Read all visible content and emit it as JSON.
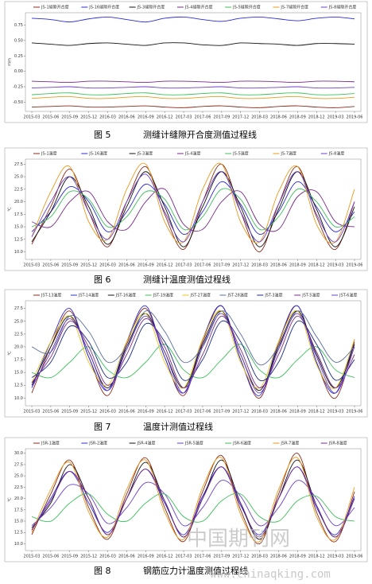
{
  "chart_data": [
    {
      "type": "line",
      "figure": "图 5",
      "title": "测缝计缝隙开合度测值过程线",
      "y_label": "mm",
      "categories": [
        "2015-03",
        "2015-06",
        "2015-09",
        "2015-12",
        "2016-03",
        "2016-06",
        "2016-09",
        "2016-12",
        "2017-03",
        "2017-06",
        "2017-09",
        "2017-12",
        "2018-03",
        "2018-06",
        "2018-09",
        "2018-12",
        "2019-03",
        "2019-06"
      ],
      "ylim": [
        -0.65,
        0.95
      ],
      "yticks": [
        {
          "value": -0.5,
          "label": "-0.50"
        },
        {
          "value": -0.25,
          "label": "-0.25"
        },
        {
          "value": 0,
          "label": "0.00"
        },
        {
          "value": 0.25,
          "label": "0.25"
        },
        {
          "value": 0.5,
          "label": "0.50"
        },
        {
          "value": 0.75,
          "label": "0.75"
        }
      ],
      "grid": false,
      "series": [
        {
          "name": "JS-1缝隙开合度",
          "color": "#8b2a1a",
          "values": [
            -0.58,
            -0.57,
            -0.56,
            -0.58,
            -0.58,
            -0.57,
            -0.56,
            -0.58,
            -0.59,
            -0.57,
            -0.56,
            -0.58,
            -0.59,
            -0.57,
            -0.56,
            -0.58,
            -0.59,
            -0.57
          ]
        },
        {
          "name": "JS-16缝隙开合度",
          "color": "#2b2bd9",
          "values": [
            0.86,
            0.84,
            0.8,
            0.85,
            0.88,
            0.84,
            0.8,
            0.86,
            0.88,
            0.84,
            0.81,
            0.86,
            0.88,
            0.85,
            0.82,
            0.86,
            0.88,
            0.85
          ]
        },
        {
          "name": "JS-3缝隙开合度",
          "color": "#111111",
          "values": [
            0.46,
            0.44,
            0.42,
            0.45,
            0.46,
            0.44,
            0.42,
            0.46,
            0.46,
            0.43,
            0.42,
            0.46,
            0.45,
            0.44,
            0.42,
            0.45,
            0.45,
            0.44
          ]
        },
        {
          "name": "JS-4缝隙开合度",
          "color": "#7a2a8a",
          "values": [
            -0.16,
            -0.17,
            -0.18,
            -0.16,
            -0.16,
            -0.17,
            -0.18,
            -0.16,
            -0.16,
            -0.17,
            -0.18,
            -0.16,
            -0.16,
            -0.17,
            -0.18,
            -0.16,
            -0.16,
            -0.17
          ]
        },
        {
          "name": "JS-5缝隙开合度",
          "color": "#3cbf5a",
          "values": [
            -0.38,
            -0.36,
            -0.35,
            -0.38,
            -0.38,
            -0.36,
            -0.35,
            -0.38,
            -0.38,
            -0.36,
            -0.35,
            -0.38,
            -0.38,
            -0.36,
            -0.35,
            -0.38,
            -0.38,
            -0.36
          ]
        },
        {
          "name": "JS-7缝隙开合度",
          "color": "#e89a1c",
          "values": [
            -0.44,
            -0.42,
            -0.41,
            -0.44,
            -0.44,
            -0.42,
            -0.41,
            -0.44,
            -0.44,
            -0.42,
            -0.41,
            -0.44,
            -0.44,
            -0.42,
            -0.41,
            -0.44,
            -0.44,
            -0.42
          ]
        },
        {
          "name": "JS-8缝隙开合度",
          "color": "#6a3fc9",
          "values": [
            -0.27,
            -0.26,
            -0.25,
            -0.27,
            -0.27,
            -0.26,
            -0.25,
            -0.27,
            -0.27,
            -0.26,
            -0.25,
            -0.27,
            -0.27,
            -0.26,
            -0.25,
            -0.27,
            -0.27,
            -0.26
          ]
        }
      ]
    },
    {
      "type": "line",
      "figure": "图 6",
      "title": "测缝计温度测值过程线",
      "y_label": "℃",
      "categories": [
        "2015-03",
        "2015-06",
        "2015-09",
        "2015-12",
        "2016-03",
        "2016-06",
        "2016-09",
        "2016-12",
        "2017-03",
        "2017-06",
        "2017-09",
        "2017-12",
        "2018-03",
        "2018-06",
        "2018-09",
        "2018-12",
        "2019-03",
        "2019-06"
      ],
      "ylim": [
        8.5,
        28.5
      ],
      "yticks": [
        {
          "value": 10,
          "label": "10.0"
        },
        {
          "value": 12.5,
          "label": "12.5"
        },
        {
          "value": 15,
          "label": "15.0"
        },
        {
          "value": 17.5,
          "label": "17.5"
        },
        {
          "value": 20,
          "label": "20.0"
        },
        {
          "value": 22.5,
          "label": "22.5"
        },
        {
          "value": 25,
          "label": "25.0"
        },
        {
          "value": 27.5,
          "label": "27.5"
        }
      ],
      "grid": false,
      "series": [
        {
          "name": "JS-1温度",
          "color": "#8b2a1a",
          "values": [
            11.5,
            19,
            26.5,
            18,
            11,
            20,
            27,
            17.5,
            10.5,
            20,
            27.5,
            18,
            10,
            19.5,
            27,
            17,
            10.5,
            20
          ]
        },
        {
          "name": "JS-16温度",
          "color": "#2b2bd9",
          "values": [
            14,
            18,
            23,
            20,
            14,
            18,
            23.5,
            19.5,
            13.5,
            18,
            24,
            19.5,
            13.5,
            18,
            24,
            19,
            14,
            18
          ]
        },
        {
          "name": "JS-3温度",
          "color": "#111111",
          "values": [
            12,
            18,
            25,
            19,
            11.5,
            19,
            26,
            19,
            11,
            19,
            26,
            19,
            11,
            18.5,
            26,
            18.5,
            11,
            19
          ]
        },
        {
          "name": "JS-4温度",
          "color": "#7a2a8a",
          "values": [
            16,
            15,
            20,
            22,
            16,
            14.5,
            20,
            22.5,
            15.5,
            14.5,
            20,
            22,
            15.5,
            14.5,
            21,
            22,
            16,
            15
          ]
        },
        {
          "name": "JS-5温度",
          "color": "#3cbf5a",
          "values": [
            15,
            17,
            22,
            20.5,
            15,
            17,
            22,
            20.5,
            14.5,
            17,
            22.5,
            20.5,
            14.5,
            17,
            22.5,
            20,
            15,
            17
          ]
        },
        {
          "name": "JS-7温度",
          "color": "#e89a1c",
          "values": [
            13,
            22,
            27,
            16,
            12.5,
            22.5,
            27.5,
            16,
            12,
            22.5,
            27.5,
            16,
            12,
            22,
            27,
            15.5,
            12,
            22.5
          ]
        },
        {
          "name": "JS-8温度",
          "color": "#6a3fc9",
          "values": [
            13,
            20,
            25,
            18,
            12.5,
            20,
            25.5,
            18,
            12,
            20,
            26,
            18,
            12,
            19.5,
            26,
            17.5,
            12,
            20
          ]
        }
      ]
    },
    {
      "type": "line",
      "figure": "图 7",
      "title": "温度计测值过程线",
      "y_label": "℃",
      "categories": [
        "2015-03",
        "2015-06",
        "2015-09",
        "2015-12",
        "2016-03",
        "2016-06",
        "2016-09",
        "2016-12",
        "2017-03",
        "2017-06",
        "2017-09",
        "2017-12",
        "2018-03",
        "2018-06",
        "2018-09",
        "2018-12",
        "2019-03",
        "2019-06"
      ],
      "ylim": [
        8.5,
        29
      ],
      "yticks": [
        {
          "value": 10,
          "label": "10.0"
        },
        {
          "value": 12.5,
          "label": "12.5"
        },
        {
          "value": 15,
          "label": "15.0"
        },
        {
          "value": 17.5,
          "label": "17.5"
        },
        {
          "value": 20,
          "label": "20.0"
        },
        {
          "value": 22.5,
          "label": "22.5"
        },
        {
          "value": 25,
          "label": "25.0"
        },
        {
          "value": 27.5,
          "label": "27.5"
        }
      ],
      "grid": false,
      "series": [
        {
          "name": "JST-13温度",
          "color": "#8b2a1a",
          "values": [
            11,
            20,
            27,
            18,
            10.5,
            20.5,
            27.5,
            18,
            10.5,
            21,
            28,
            17.5,
            10,
            20.5,
            28,
            17,
            10,
            21
          ]
        },
        {
          "name": "JST-14温度",
          "color": "#2b2bd9",
          "values": [
            12,
            21,
            27.5,
            18,
            11.5,
            21,
            28,
            18,
            11,
            21.5,
            28,
            17.5,
            10.5,
            21,
            28,
            17,
            11,
            21.5
          ]
        },
        {
          "name": "JST-16温度",
          "color": "#111111",
          "values": [
            12.5,
            20,
            26,
            19,
            12,
            20,
            26.5,
            19,
            12,
            20.5,
            27,
            18.5,
            11.5,
            20,
            27,
            18.5,
            12,
            20.5
          ]
        },
        {
          "name": "JST-19温度",
          "color": "#3cbf5a",
          "values": [
            15,
            14,
            17,
            20,
            15.5,
            14,
            17,
            20.5,
            15.5,
            14,
            17.5,
            20.5,
            15.5,
            14,
            17.5,
            20,
            15.5,
            14
          ]
        },
        {
          "name": "JST-27温度",
          "color": "#e8c21c",
          "values": [
            13,
            21,
            26,
            17,
            12.5,
            21,
            26.5,
            17,
            12,
            21.5,
            27,
            17,
            12,
            21,
            27,
            16.5,
            12,
            21.5
          ]
        },
        {
          "name": "JST-28温度",
          "color": "#5a6e9a",
          "values": [
            20,
            19,
            26,
            23,
            17,
            20,
            27,
            23,
            17,
            20,
            27,
            22.5,
            16.5,
            20,
            27,
            22,
            17,
            20
          ]
        },
        {
          "name": "JST-3温度",
          "color": "#1a2a8a",
          "values": [
            14,
            17,
            24,
            21,
            14,
            17,
            24.5,
            21,
            13.5,
            17.5,
            25,
            21,
            13.5,
            17,
            25,
            20.5,
            13.5,
            17.5
          ]
        },
        {
          "name": "JST-5温度",
          "color": "#7a2a8a",
          "values": [
            13,
            18,
            25,
            20,
            12.5,
            18.5,
            25.5,
            20,
            12,
            18.5,
            26,
            19.5,
            12,
            18.5,
            26,
            19,
            12,
            18.5
          ]
        },
        {
          "name": "JST-6温度",
          "color": "#6a3fc9",
          "values": [
            12,
            19,
            25.5,
            19,
            11.5,
            19.5,
            26,
            19,
            11,
            20,
            26.5,
            18.5,
            11,
            19.5,
            26.5,
            18,
            11,
            20
          ]
        }
      ]
    },
    {
      "type": "line",
      "figure": "图 8",
      "title": "钢筋应力计温度测值过程线",
      "y_label": "℃",
      "categories": [
        "2015-03",
        "2015-06",
        "2015-09",
        "2015-12",
        "2016-03",
        "2016-06",
        "2016-09",
        "2016-12",
        "2017-03",
        "2017-06",
        "2017-09",
        "2017-12",
        "2018-03",
        "2018-06",
        "2018-09",
        "2018-12",
        "2019-03",
        "2019-06"
      ],
      "ylim": [
        8.5,
        31
      ],
      "yticks": [
        {
          "value": 10,
          "label": "10.0"
        },
        {
          "value": 12.5,
          "label": "12.5"
        },
        {
          "value": 15,
          "label": "15.0"
        },
        {
          "value": 17.5,
          "label": "17.5"
        },
        {
          "value": 20,
          "label": "20.0"
        },
        {
          "value": 22.5,
          "label": "22.5"
        },
        {
          "value": 25,
          "label": "25.0"
        },
        {
          "value": 27.5,
          "label": "27.5"
        },
        {
          "value": 30,
          "label": "30.0"
        }
      ],
      "grid": false,
      "series": [
        {
          "name": "JSR-1温度",
          "color": "#8b2a1a",
          "values": [
            12,
            21,
            28.5,
            18,
            11,
            21,
            29,
            18,
            10.5,
            21.5,
            29.5,
            17.5,
            10,
            21,
            30,
            17,
            10.5,
            21.5
          ]
        },
        {
          "name": "JSR-2温度",
          "color": "#2b2bd9",
          "values": [
            13,
            20,
            26,
            19,
            12.5,
            20,
            26.5,
            19,
            12,
            20.5,
            27,
            18.5,
            12,
            20,
            27,
            18,
            12,
            20.5
          ]
        },
        {
          "name": "JSR-4温度",
          "color": "#111111",
          "values": [
            13.5,
            19,
            27.5,
            20,
            12,
            20,
            28,
            19.5,
            11.5,
            20,
            28.5,
            19,
            11,
            20,
            28.5,
            18.5,
            11.5,
            20
          ]
        },
        {
          "name": "JSR-5温度",
          "color": "#6a3fc9",
          "values": [
            14,
            18,
            23,
            21,
            14.5,
            18,
            23.5,
            21,
            14,
            18,
            24,
            20.5,
            14,
            18,
            24,
            20,
            14,
            18
          ]
        },
        {
          "name": "JSR-6温度",
          "color": "#3cbf5a",
          "values": [
            16,
            15,
            19,
            21,
            16.5,
            15,
            19,
            21,
            16,
            15,
            19.5,
            21,
            16,
            15,
            19.5,
            20.5,
            16,
            15
          ]
        },
        {
          "name": "JSR-7温度",
          "color": "#e89a1c",
          "values": [
            12.5,
            22,
            28,
            17,
            11.5,
            22,
            28.5,
            17,
            11,
            22.5,
            29,
            16.5,
            10.5,
            22,
            29,
            16,
            11,
            22.5
          ]
        },
        {
          "name": "JSR-8温度",
          "color": "#7a2a8a",
          "values": [
            13,
            19.5,
            26,
            20,
            12,
            20,
            26.5,
            19.5,
            11.5,
            20,
            27,
            19,
            11.5,
            20,
            27,
            18.5,
            11.5,
            20
          ]
        }
      ]
    }
  ],
  "watermark": {
    "name": "中国期刊网",
    "url": "www.chinaqking.com"
  }
}
